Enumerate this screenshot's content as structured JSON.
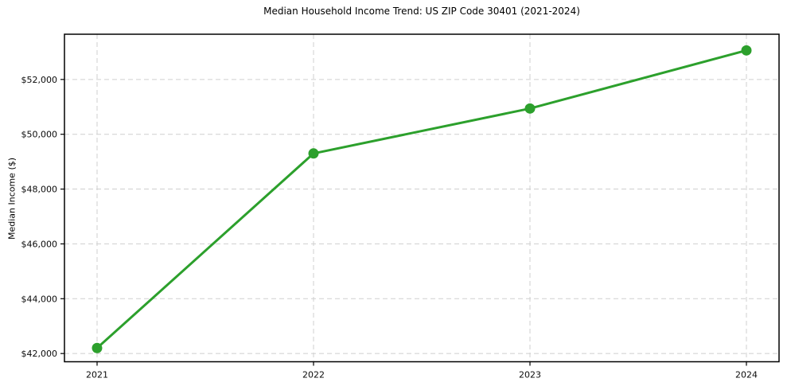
{
  "chart_data": {
    "type": "line",
    "title": "Median Household Income Trend: US ZIP Code 30401 (2021-2024)",
    "xlabel": "",
    "ylabel": "Median Income ($)",
    "categories": [
      "2021",
      "2022",
      "2023",
      "2024"
    ],
    "series": [
      {
        "name": "Median Household Income",
        "values": [
          42200,
          49300,
          50940,
          53060
        ]
      }
    ],
    "y_tick_values": [
      42000,
      44000,
      46000,
      48000,
      50000,
      52000
    ],
    "y_tick_labels": [
      "$42,000",
      "$44,000",
      "$46,000",
      "$48,000",
      "$50,000",
      "$52,000"
    ],
    "ylim": [
      41700,
      53650
    ],
    "grid": "dashed-both-axes",
    "legend_position": "none",
    "colors": {
      "line": "#2ca02c",
      "marker": "#2ca02c",
      "grid": "#cfcfcf",
      "spine": "#000000",
      "text": "#0a0a0a",
      "background": "#ffffff"
    },
    "marker_shape": "circle",
    "marker_radius": 6.5,
    "line_width": 3
  }
}
